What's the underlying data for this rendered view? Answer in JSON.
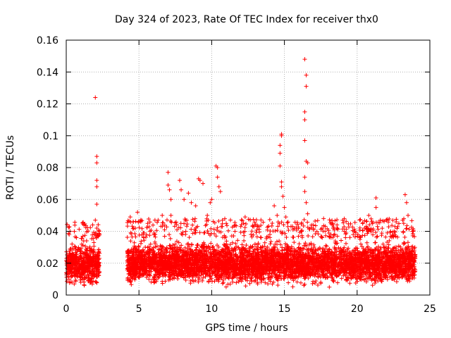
{
  "chart_data": {
    "type": "scatter",
    "title": "Day 324 of 2023, Rate Of TEC Index for receiver thx0",
    "xlabel": "GPS time / hours",
    "ylabel": "ROTI / TECUs",
    "xlim": [
      0,
      25
    ],
    "ylim": [
      0,
      0.16
    ],
    "x_ticks": [
      0,
      5,
      10,
      15,
      20,
      25
    ],
    "x_tick_labels": [
      "0",
      "5",
      "10",
      "15",
      "20",
      "25"
    ],
    "y_ticks": [
      0,
      0.02,
      0.04,
      0.06,
      0.08,
      0.1,
      0.12,
      0.14,
      0.16
    ],
    "y_tick_labels": [
      "0",
      "0.02",
      "0.04",
      "0.06",
      "0.08",
      "0.1",
      "0.12",
      "0.14",
      "0.16"
    ],
    "grid": true,
    "marker": "plus",
    "color": "#ff0000",
    "data_gaps_hours": [
      [
        2.3,
        4.2
      ]
    ],
    "points": [
      [
        0.2,
        0.038
      ],
      [
        0.4,
        0.032
      ],
      [
        0.7,
        0.036
      ],
      [
        1.2,
        0.034
      ],
      [
        1.6,
        0.028
      ],
      [
        1.9,
        0.033
      ],
      [
        2.0,
        0.124
      ],
      [
        2.1,
        0.087
      ],
      [
        2.1,
        0.083
      ],
      [
        2.1,
        0.072
      ],
      [
        2.1,
        0.068
      ],
      [
        2.1,
        0.057
      ],
      [
        2.0,
        0.047
      ],
      [
        2.1,
        0.042
      ],
      [
        4.4,
        0.049
      ],
      [
        4.6,
        0.046
      ],
      [
        4.9,
        0.052
      ],
      [
        5.3,
        0.039
      ],
      [
        5.6,
        0.045
      ],
      [
        6.1,
        0.047
      ],
      [
        6.6,
        0.05
      ],
      [
        7.0,
        0.077
      ],
      [
        7.0,
        0.069
      ],
      [
        7.1,
        0.066
      ],
      [
        7.2,
        0.06
      ],
      [
        7.2,
        0.05
      ],
      [
        7.8,
        0.072
      ],
      [
        7.9,
        0.066
      ],
      [
        8.1,
        0.06
      ],
      [
        8.4,
        0.064
      ],
      [
        8.6,
        0.058
      ],
      [
        8.9,
        0.056
      ],
      [
        9.1,
        0.073
      ],
      [
        9.2,
        0.072
      ],
      [
        9.4,
        0.07
      ],
      [
        9.7,
        0.05
      ],
      [
        9.9,
        0.058
      ],
      [
        10.0,
        0.06
      ],
      [
        10.3,
        0.081
      ],
      [
        10.4,
        0.08
      ],
      [
        10.4,
        0.074
      ],
      [
        10.5,
        0.068
      ],
      [
        10.6,
        0.065
      ],
      [
        11.0,
        0.045
      ],
      [
        11.6,
        0.04
      ],
      [
        12.0,
        0.043
      ],
      [
        12.3,
        0.049
      ],
      [
        12.7,
        0.038
      ],
      [
        13.4,
        0.036
      ],
      [
        14.0,
        0.038
      ],
      [
        14.3,
        0.056
      ],
      [
        14.5,
        0.05
      ],
      [
        14.8,
        0.101
      ],
      [
        14.8,
        0.1
      ],
      [
        14.7,
        0.094
      ],
      [
        14.7,
        0.089
      ],
      [
        14.7,
        0.081
      ],
      [
        14.8,
        0.071
      ],
      [
        14.8,
        0.068
      ],
      [
        14.9,
        0.062
      ],
      [
        15.0,
        0.055
      ],
      [
        15.1,
        0.049
      ],
      [
        16.4,
        0.148
      ],
      [
        16.5,
        0.138
      ],
      [
        16.5,
        0.131
      ],
      [
        16.4,
        0.115
      ],
      [
        16.4,
        0.11
      ],
      [
        16.4,
        0.097
      ],
      [
        16.5,
        0.084
      ],
      [
        16.6,
        0.083
      ],
      [
        16.4,
        0.074
      ],
      [
        16.4,
        0.065
      ],
      [
        16.5,
        0.058
      ],
      [
        16.6,
        0.051
      ],
      [
        17.0,
        0.041
      ],
      [
        17.6,
        0.036
      ],
      [
        18.2,
        0.038
      ],
      [
        19.2,
        0.036
      ],
      [
        19.8,
        0.04
      ],
      [
        20.2,
        0.035
      ],
      [
        20.8,
        0.05
      ],
      [
        21.0,
        0.046
      ],
      [
        21.3,
        0.061
      ],
      [
        21.3,
        0.055
      ],
      [
        21.6,
        0.047
      ],
      [
        22.0,
        0.047
      ],
      [
        22.3,
        0.04
      ],
      [
        22.6,
        0.043
      ],
      [
        23.2,
        0.045
      ],
      [
        23.3,
        0.063
      ],
      [
        23.4,
        0.058
      ],
      [
        23.5,
        0.05
      ],
      [
        23.8,
        0.04
      ]
    ],
    "dense_segments": [
      {
        "x_range": [
          0.0,
          2.3
        ],
        "y_range": [
          0.004,
          0.034
        ]
      },
      {
        "x_range": [
          4.2,
          24.0
        ],
        "y_range": [
          0.004,
          0.036
        ]
      }
    ]
  }
}
